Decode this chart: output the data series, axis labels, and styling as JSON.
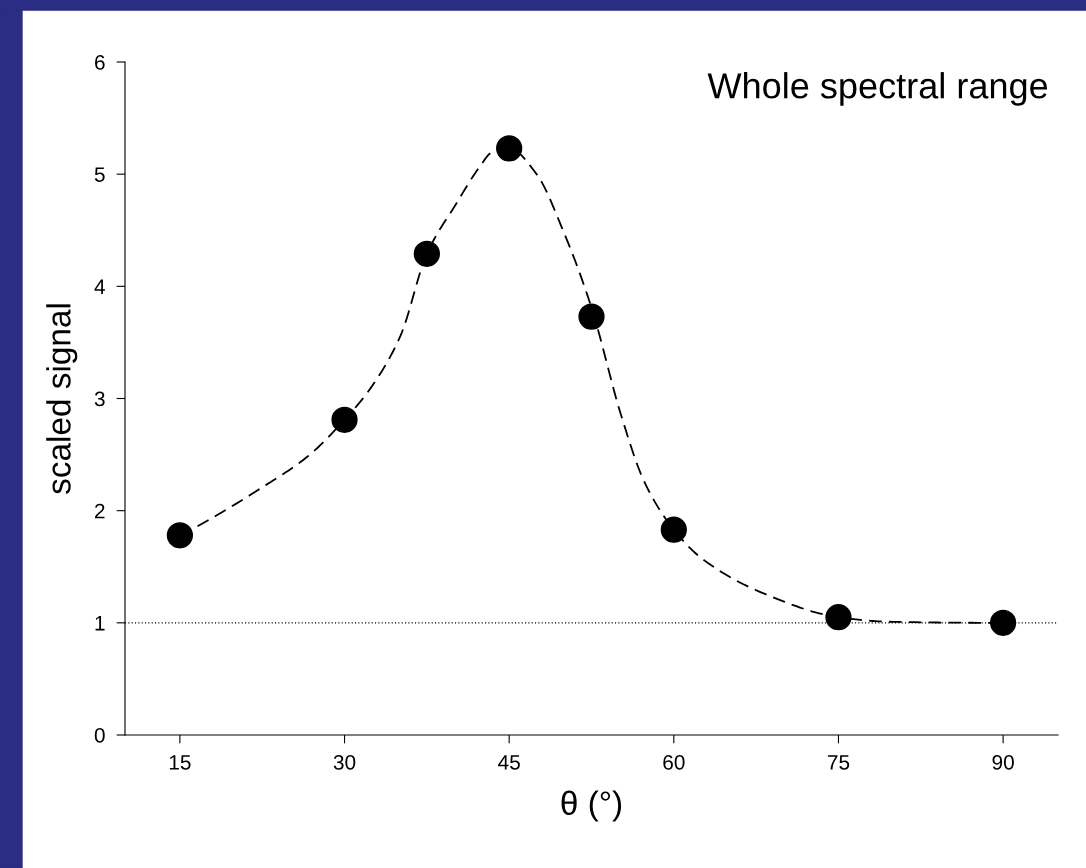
{
  "chart_data": {
    "type": "scatter",
    "title": "Whole spectral range",
    "xlabel": "θ (°)",
    "ylabel": "scaled signal",
    "x": [
      15,
      30,
      37.5,
      45,
      52.5,
      60,
      75,
      90
    ],
    "series": [
      {
        "color": "#000000",
        "marker": "circle",
        "values": [
          1.78,
          2.81,
          4.29,
          5.23,
          3.73,
          1.83,
          1.05,
          1.0
        ]
      },
      {
        "type": "line",
        "color": "#000000",
        "line_style": "dashed",
        "marker": "none",
        "x": [
          15,
          16.2,
          22.7,
          26.6,
          30,
          32.5,
          35.1,
          37.5,
          40.2,
          42.2,
          43.5,
          45,
          47.5,
          49.9,
          52.5,
          55.2,
          57.3,
          60,
          62.6,
          68.0,
          75,
          79.5,
          89.6,
          90
        ],
        "values": [
          1.78,
          1.84,
          2.22,
          2.48,
          2.81,
          3.11,
          3.56,
          4.29,
          4.74,
          5.05,
          5.2,
          5.23,
          5.0,
          4.5,
          3.81,
          2.85,
          2.26,
          1.83,
          1.57,
          1.27,
          1.05,
          1.01,
          1.0,
          1.0
        ]
      }
    ],
    "ref_lines": [
      {
        "axis": "y",
        "value": 1,
        "line_style": "dotted",
        "color": "#000000"
      }
    ],
    "xlim": [
      10,
      95
    ],
    "xticks": [
      15,
      30,
      45,
      60,
      75,
      90
    ],
    "ylim": [
      0,
      6
    ],
    "yticks": [
      0,
      1,
      2,
      3,
      4,
      5,
      6
    ],
    "grid": false,
    "legend": false
  }
}
